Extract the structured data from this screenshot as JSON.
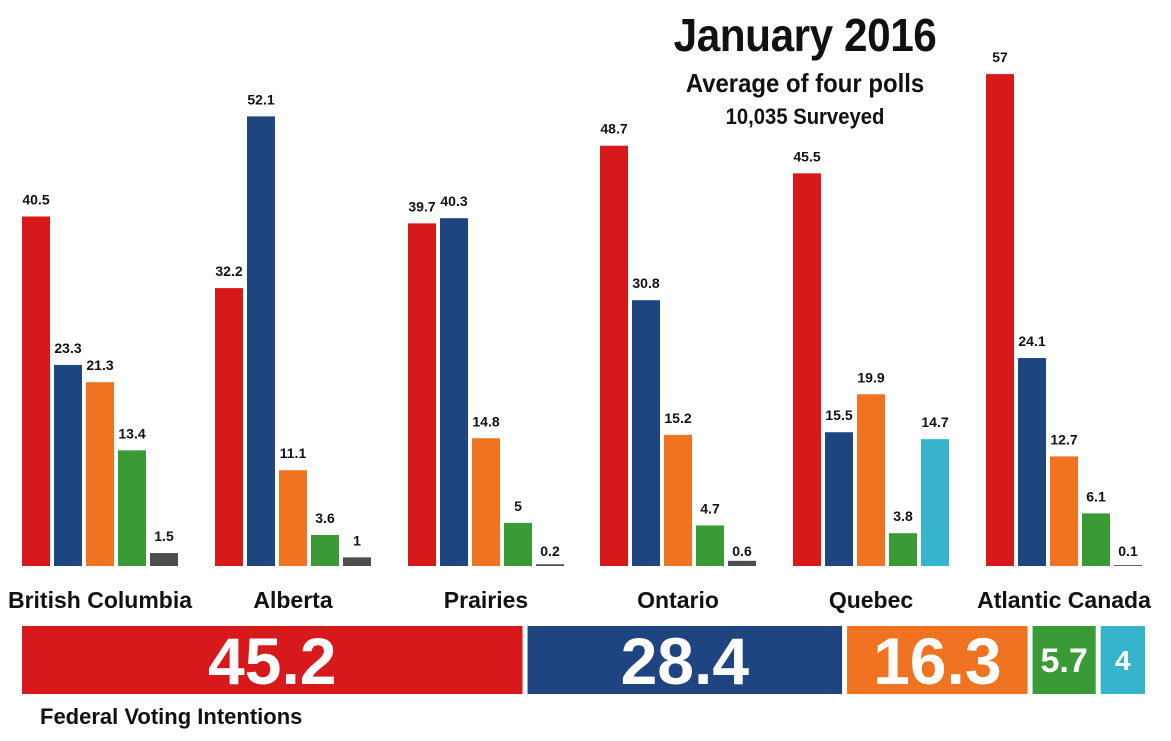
{
  "title": "January 2016",
  "subtitle": "Average of four polls",
  "surveyed": "10,035 Surveyed",
  "footer_label": "Federal Voting Intentions",
  "colors": [
    "#d7191c",
    "#1f4581",
    "#f07322",
    "#3a9a35",
    "#4d4d4d",
    "#35b4cc"
  ],
  "chart_data": {
    "type": "bar",
    "title": "January 2016",
    "ylim": [
      0,
      60
    ],
    "categories": [
      "British Columbia",
      "Alberta",
      "Prairies",
      "Ontario",
      "Quebec",
      "Atlantic Canada"
    ],
    "groups": [
      {
        "region": "British Columbia",
        "bars": [
          {
            "color": "#d7191c",
            "value": 40.5
          },
          {
            "color": "#1f4581",
            "value": 23.3
          },
          {
            "color": "#f07322",
            "value": 21.3
          },
          {
            "color": "#3a9a35",
            "value": 13.4
          },
          {
            "color": "#4d4d4d",
            "value": 1.5
          }
        ]
      },
      {
        "region": "Alberta",
        "bars": [
          {
            "color": "#d7191c",
            "value": 32.2
          },
          {
            "color": "#1f4581",
            "value": 52.1
          },
          {
            "color": "#f07322",
            "value": 11.1
          },
          {
            "color": "#3a9a35",
            "value": 3.6
          },
          {
            "color": "#4d4d4d",
            "value": 1
          }
        ]
      },
      {
        "region": "Prairies",
        "bars": [
          {
            "color": "#d7191c",
            "value": 39.7
          },
          {
            "color": "#1f4581",
            "value": 40.3
          },
          {
            "color": "#f07322",
            "value": 14.8
          },
          {
            "color": "#3a9a35",
            "value": 5
          },
          {
            "color": "#4d4d4d",
            "value": 0.2
          }
        ]
      },
      {
        "region": "Ontario",
        "bars": [
          {
            "color": "#d7191c",
            "value": 48.7
          },
          {
            "color": "#1f4581",
            "value": 30.8
          },
          {
            "color": "#f07322",
            "value": 15.2
          },
          {
            "color": "#3a9a35",
            "value": 4.7
          },
          {
            "color": "#4d4d4d",
            "value": 0.6
          }
        ]
      },
      {
        "region": "Quebec",
        "bars": [
          {
            "color": "#d7191c",
            "value": 45.5
          },
          {
            "color": "#1f4581",
            "value": 15.5
          },
          {
            "color": "#f07322",
            "value": 19.9
          },
          {
            "color": "#3a9a35",
            "value": 3.8
          },
          {
            "color": "#35b4cc",
            "value": 14.7
          }
        ]
      },
      {
        "region": "Atlantic Canada",
        "bars": [
          {
            "color": "#d7191c",
            "value": 57
          },
          {
            "color": "#1f4581",
            "value": 24.1
          },
          {
            "color": "#f07322",
            "value": 12.7
          },
          {
            "color": "#3a9a35",
            "value": 6.1
          },
          {
            "color": "#4d4d4d",
            "value": 0.1
          }
        ]
      }
    ],
    "national": [
      {
        "color": "#d7191c",
        "value": 45.2
      },
      {
        "color": "#1f4581",
        "value": 28.4
      },
      {
        "color": "#f07322",
        "value": 16.3
      },
      {
        "color": "#3a9a35",
        "value": 5.7
      },
      {
        "color": "#35b4cc",
        "value": 4
      }
    ]
  }
}
